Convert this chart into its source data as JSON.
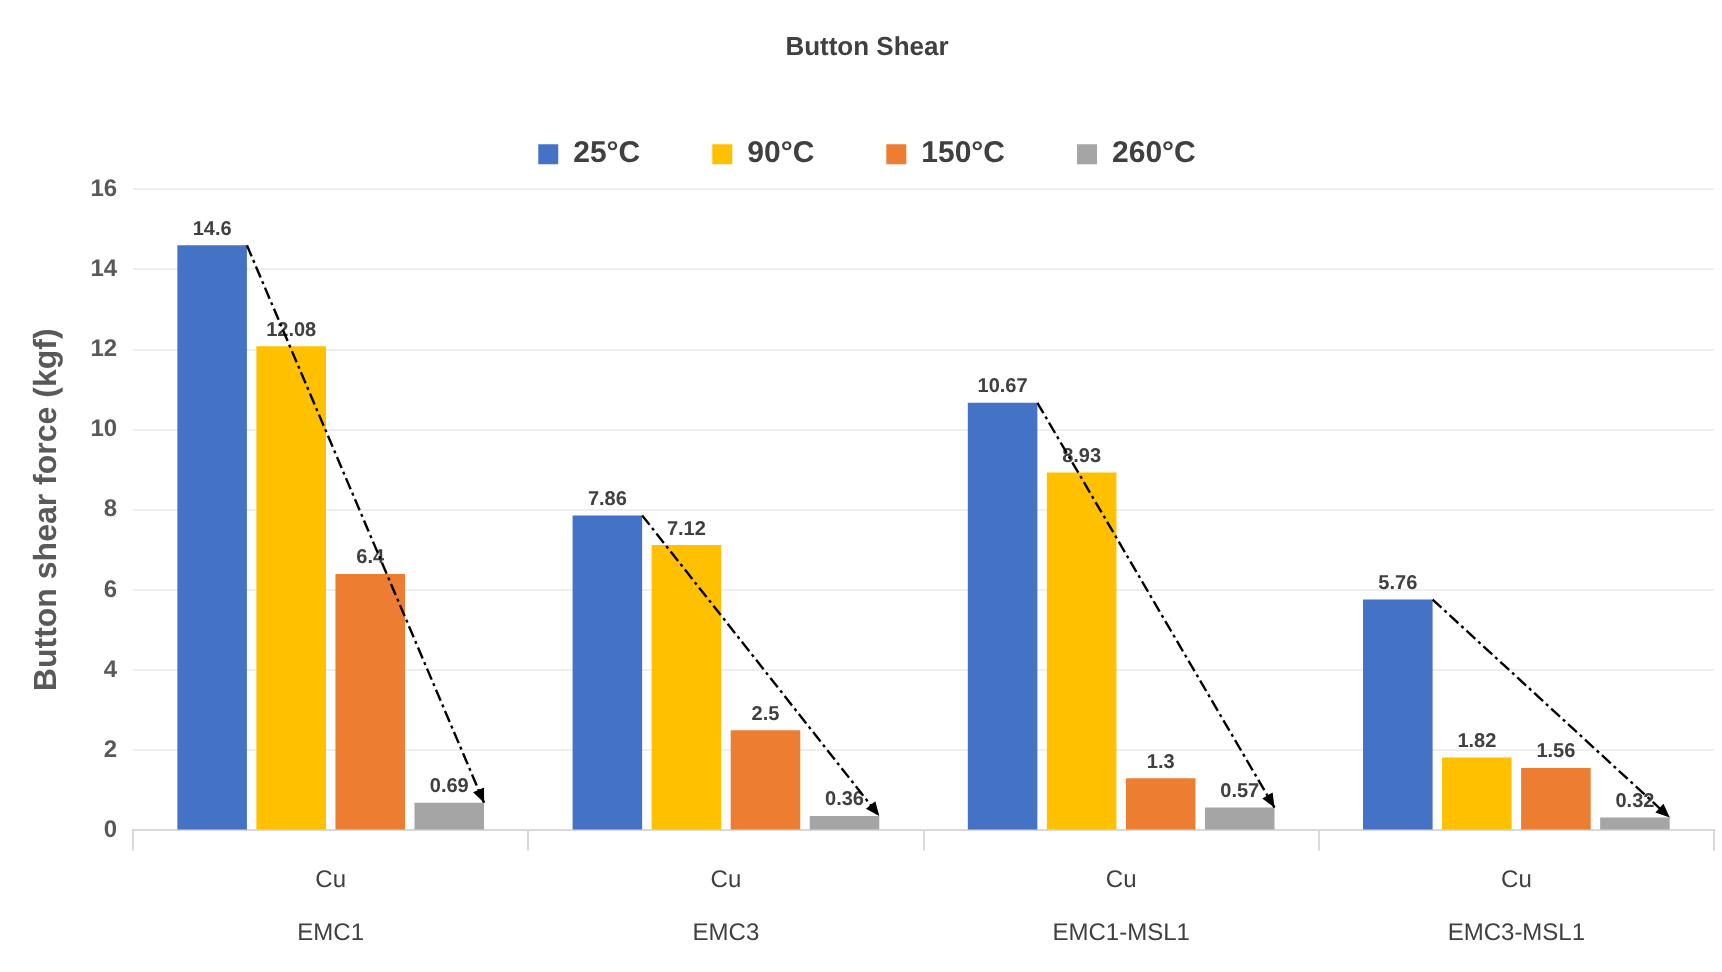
{
  "chart_data": {
    "type": "bar",
    "title": "Button Shear",
    "ylabel": "Button shear force (kgf)",
    "categories": [
      "Cu\nEMC1",
      "Cu\nEMC3",
      "Cu\nEMC1-MSL1",
      "Cu\nEMC3-MSL1"
    ],
    "series": [
      {
        "name": "25°C",
        "color": "#4472c4",
        "values": [
          14.6,
          7.86,
          10.67,
          5.76
        ]
      },
      {
        "name": "90°C",
        "color": "#ffc000",
        "values": [
          12.08,
          7.12,
          8.93,
          1.82
        ]
      },
      {
        "name": "150°C",
        "color": "#ed7d31",
        "values": [
          6.4,
          2.5,
          1.3,
          1.56
        ]
      },
      {
        "name": "260°C",
        "color": "#a5a5a5",
        "values": [
          0.69,
          0.36,
          0.57,
          0.32
        ]
      }
    ],
    "ylim": [
      0,
      16
    ],
    "yticks": [
      0,
      2,
      4,
      6,
      8,
      10,
      12,
      14,
      16
    ],
    "grid": "y",
    "legend": "top",
    "data_labels": true
  }
}
